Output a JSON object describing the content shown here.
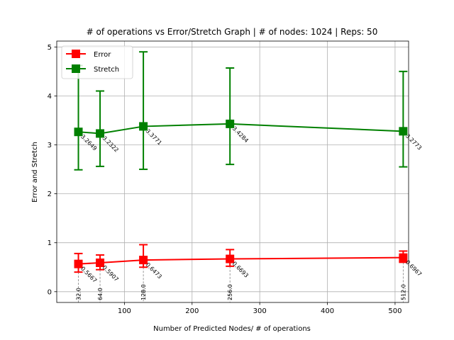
{
  "chart_data": {
    "type": "line",
    "title": "# of operations vs Error/Stretch Graph | # of nodes: 1024 | Reps: 50",
    "xlabel": "Number of Predicted Nodes/ # of operations",
    "ylabel": "Error and Stretch",
    "xlim": [
      0,
      520
    ],
    "ylim": [
      -0.22,
      5.12
    ],
    "x_ticks": [
      100,
      200,
      300,
      400,
      500
    ],
    "y_ticks": [
      0,
      1,
      2,
      3,
      4,
      5
    ],
    "grid": true,
    "legend": "top-left",
    "x": [
      32,
      64,
      128,
      256,
      512
    ],
    "x_annotations": [
      "32.0",
      "64.0",
      "128.0",
      "256.0",
      "512.0"
    ],
    "series": [
      {
        "name": "Error",
        "color": "#ff0000",
        "marker": "square",
        "values": [
          0.5667,
          0.5907,
          0.6473,
          0.6693,
          0.6967
        ],
        "labels": [
          "0.5667",
          "0.5907",
          "0.6473",
          "0.6693",
          "0.6967"
        ],
        "err_low": [
          0.4,
          0.45,
          0.5,
          0.52,
          0.6
        ],
        "err_high": [
          0.78,
          0.75,
          0.96,
          0.86,
          0.83
        ]
      },
      {
        "name": "Stretch",
        "color": "#008000",
        "marker": "square",
        "values": [
          3.2649,
          3.2322,
          3.3771,
          3.4284,
          3.2773
        ],
        "labels": [
          "3.2649",
          "3.2322",
          "3.3771",
          "3.4284",
          "3.2773"
        ],
        "err_low": [
          2.49,
          2.56,
          2.5,
          2.6,
          2.55
        ],
        "err_high": [
          4.62,
          4.1,
          4.9,
          4.57,
          4.5
        ]
      }
    ]
  }
}
